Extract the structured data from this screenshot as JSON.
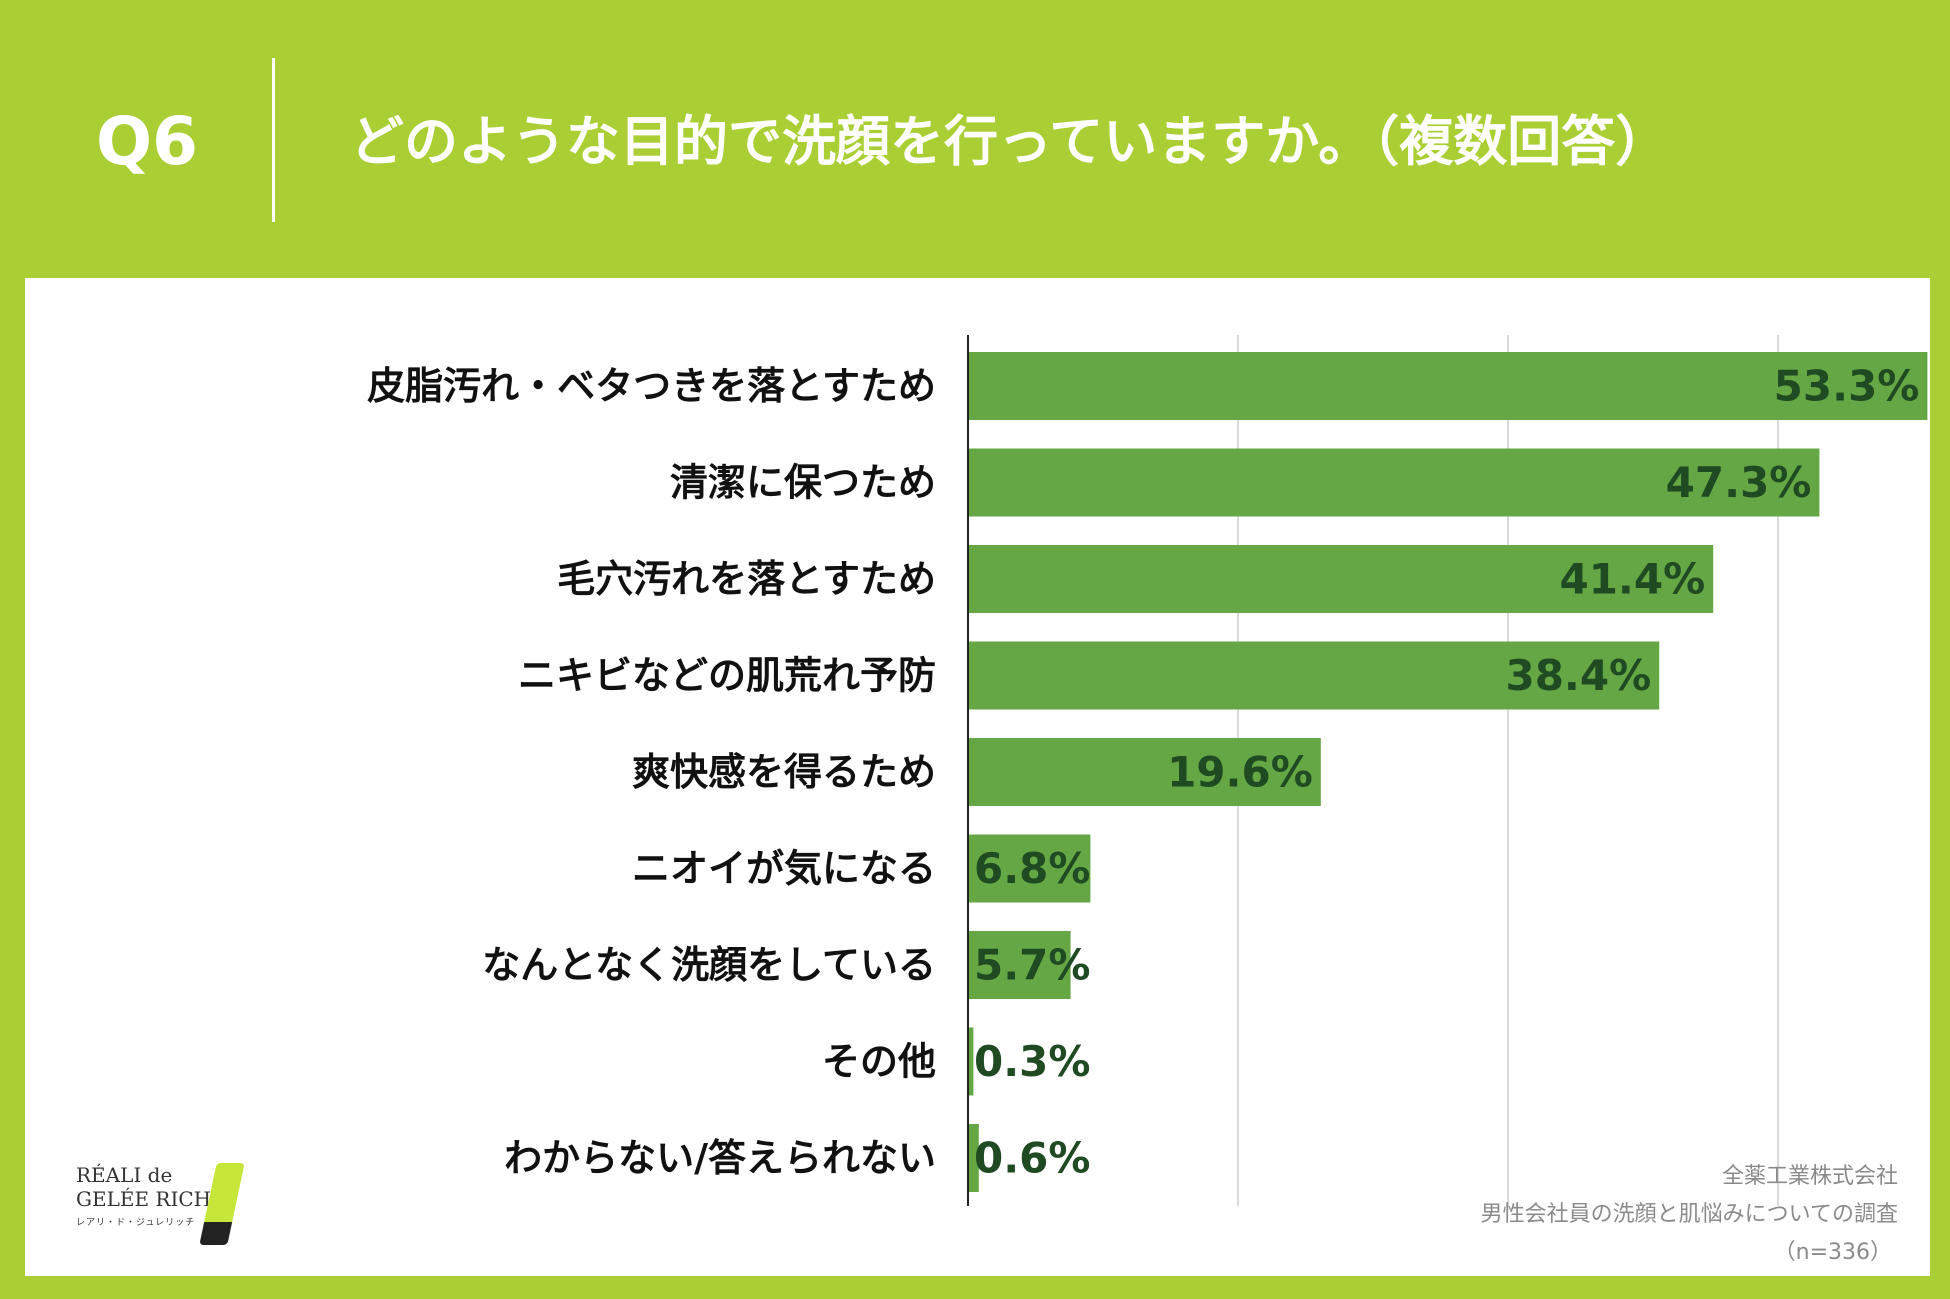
{
  "header": {
    "question_no": "Q6",
    "title": "どのような目的で洗顔を行っていますか。（複数回答）"
  },
  "colors": {
    "frame_green": "#a9cf34",
    "bar_green": "#64a744",
    "value_label": "#1f4a22",
    "grid": "#d9d9d9"
  },
  "chart_data": {
    "type": "bar",
    "orientation": "horizontal",
    "title": "どのような目的で洗顔を行っていますか。（複数回答）",
    "categories": [
      "皮脂汚れ・ベタつきを落とすため",
      "清潔に保つため",
      "毛穴汚れを落とすため",
      "ニキビなどの肌荒れ予防",
      "爽快感を得るため",
      "ニオイが気になる",
      "なんとなく洗顔をしている",
      "その他",
      "わからない/答えられない"
    ],
    "values": [
      53.3,
      47.3,
      41.4,
      38.4,
      19.6,
      6.8,
      5.7,
      0.3,
      0.6
    ],
    "value_labels": [
      "53.3%",
      "47.3%",
      "41.4%",
      "38.4%",
      "19.6%",
      "6.8%",
      "5.7%",
      "0.3%",
      "0.6%"
    ],
    "unit": "%",
    "xlim": [
      0,
      60
    ],
    "grid_step": 15,
    "xlabel": "",
    "ylabel": "",
    "grid": true,
    "legend": "none"
  },
  "footer": {
    "logo_line1": "RÉALI de",
    "logo_line2": "GELÉE RICH",
    "logo_line3": "レアリ・ド・ジュレリッチ",
    "company": "全薬工業株式会社",
    "survey": "男性会社員の洗顔と肌悩みについての調査",
    "sample": "（n=336）"
  }
}
